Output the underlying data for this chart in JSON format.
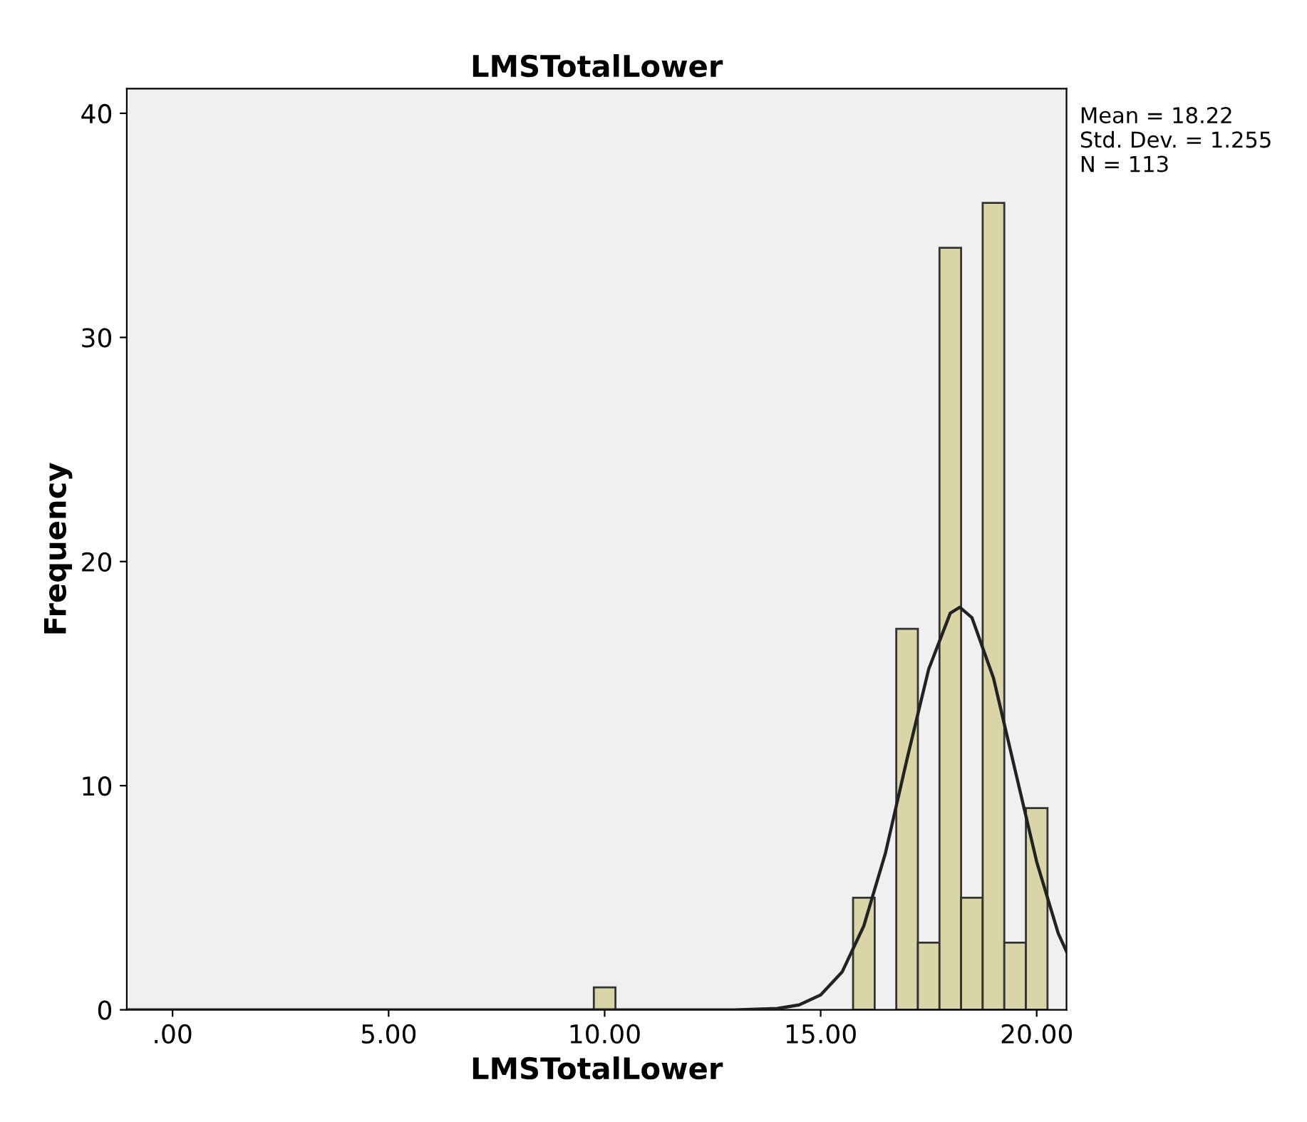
{
  "chart_data": {
    "type": "histogram",
    "title": "LMSTotalLower",
    "xlabel": "LMSTotalLower",
    "ylabel": "Frequency",
    "series": [
      {
        "color": "#d9d5a7",
        "bins": [
          9.75,
          10.25,
          10.75,
          11.25,
          11.75,
          12.25,
          12.75,
          13.25,
          13.75,
          14.25,
          14.75,
          15.25,
          15.75,
          16.25,
          16.75,
          17.25,
          17.75,
          18.25,
          18.75,
          19.25,
          19.75,
          20.25
        ],
        "values": [
          1,
          0,
          0,
          0,
          0,
          0,
          0,
          0,
          0,
          0,
          0,
          0,
          5,
          0,
          17,
          3,
          34,
          5,
          36,
          3,
          9
        ]
      },
      {
        "type": "line",
        "color": "#222222",
        "x": [
          -1.06,
          12,
          13,
          14,
          14.5,
          15,
          15.5,
          16,
          16.5,
          17,
          17.5,
          18,
          18.22,
          18.5,
          19,
          19.5,
          20,
          20.5,
          20.69
        ],
        "values": [
          0,
          0,
          0,
          0.06,
          0.22,
          0.66,
          1.7,
          3.75,
          7.0,
          11.2,
          15.2,
          17.7,
          17.96,
          17.5,
          14.8,
          10.7,
          6.6,
          3.4,
          2.6
        ]
      }
    ],
    "xlim": [
      -1.06,
      20.69
    ],
    "ylim": [
      0,
      41.1
    ],
    "xticks": [
      {
        "value": 0,
        "label": ".00"
      },
      {
        "value": 5,
        "label": "5.00"
      },
      {
        "value": 10,
        "label": "10.00"
      },
      {
        "value": 15,
        "label": "15.00"
      },
      {
        "value": 20,
        "label": "20.00"
      }
    ],
    "yticks": [
      0,
      10,
      20,
      30,
      40
    ],
    "annotations": [
      "Mean = 18.22\nStd. Dev. = 1.255\nN = 113"
    ],
    "grid": false,
    "legend": false
  }
}
